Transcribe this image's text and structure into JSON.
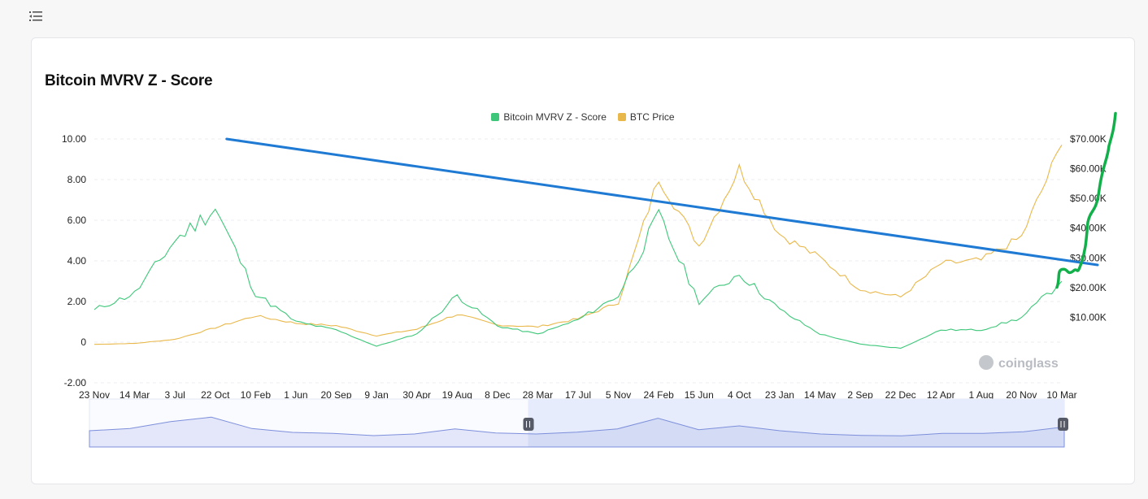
{
  "page": {
    "menu_icon": "menu-collapse-icon"
  },
  "chart_data": {
    "type": "line",
    "title": "Bitcoin MVRV Z - Score",
    "legend": {
      "placement": "top-center"
    },
    "grid": true,
    "colors": {
      "mvrv": "#3ec77a",
      "price": "#e9b84a",
      "trendline": "#1f7ad4",
      "annotation": "#12b04a",
      "zoom_fill": "#e6ecfb",
      "zoom_line": "#7d8fdb"
    },
    "x_ticks": [
      "23 Nov",
      "14 Mar",
      "3 Jul",
      "22 Oct",
      "10 Feb",
      "1 Jun",
      "20 Sep",
      "9 Jan",
      "30 Apr",
      "19 Aug",
      "8 Dec",
      "28 Mar",
      "17 Jul",
      "5 Nov",
      "24 Feb",
      "15 Jun",
      "4 Oct",
      "23 Jan",
      "14 May",
      "2 Sep",
      "22 Dec",
      "12 Apr",
      "1 Aug",
      "20 Nov",
      "10 Mar"
    ],
    "y_left": {
      "ticks": [
        "10.00",
        "8.00",
        "6.00",
        "4.00",
        "2.00",
        "0",
        "-2.00"
      ],
      "range": [
        -2,
        10
      ]
    },
    "y_right": {
      "ticks": [
        "$70.00K",
        "$60.00K",
        "$50.00K",
        "$40.00K",
        "$30.00K",
        "$20.00K",
        "$10.00K"
      ],
      "range": [
        0,
        70000
      ]
    },
    "x": [
      "23 Nov",
      "14 Mar",
      "3 Jul",
      "22 Oct",
      "10 Feb",
      "1 Jun",
      "20 Sep",
      "9 Jan",
      "30 Apr",
      "19 Aug",
      "8 Dec",
      "28 Mar",
      "17 Jul",
      "5 Nov",
      "24 Feb",
      "15 Jun",
      "4 Oct",
      "23 Jan",
      "14 May",
      "2 Sep",
      "22 Dec",
      "12 Apr",
      "1 Aug",
      "20 Nov",
      "10 Mar"
    ],
    "series": [
      {
        "name": "Bitcoin MVRV Z - Score",
        "axis": "left",
        "values": [
          1.6,
          2.4,
          5.0,
          6.6,
          2.4,
          1.0,
          0.6,
          -0.2,
          0.4,
          2.3,
          0.8,
          0.4,
          1.1,
          2.3,
          6.2,
          2.0,
          3.4,
          1.6,
          0.4,
          -0.1,
          -0.3,
          0.6,
          0.6,
          1.2,
          3.0
        ]
      },
      {
        "name": "BTC Price",
        "axis": "right",
        "values": [
          900,
          1200,
          2600,
          6500,
          10500,
          8000,
          7200,
          3800,
          6000,
          11000,
          7400,
          6800,
          9500,
          15000,
          57000,
          34000,
          60000,
          38000,
          30000,
          19500,
          16800,
          28000,
          29200,
          37000,
          68000
        ]
      }
    ],
    "trendline": {
      "from": [
        "22 Oct",
        10.0
      ],
      "to": [
        "10 Mar",
        3.8
      ]
    },
    "zoom_range": {
      "start_fraction": 0.45,
      "end_fraction": 1.0
    }
  },
  "branding": {
    "watermark": "coinglass"
  }
}
